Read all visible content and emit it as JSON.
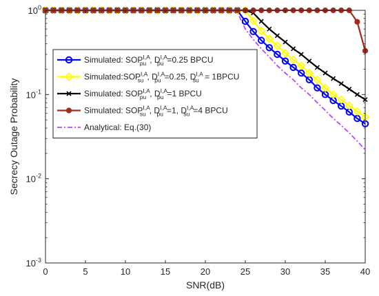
{
  "chart_data": {
    "type": "line",
    "xlabel": "SNR(dB)",
    "ylabel": "Secrecy Outage Probability",
    "xlim": [
      0,
      40
    ],
    "ylim": [
      0.001,
      1
    ],
    "yscale": "log",
    "grid": false,
    "legend_position": "center-left",
    "x_ticks": [
      0,
      5,
      10,
      15,
      20,
      25,
      30,
      35,
      40
    ],
    "x_tick_labels": [
      "0",
      "5",
      "10",
      "15",
      "20",
      "25",
      "30",
      "35",
      "40"
    ],
    "y_ticks": [
      0.001,
      0.01,
      0.1,
      1
    ],
    "y_tick_labels": [
      {
        "base": "10",
        "exp": "-3"
      },
      {
        "base": "10",
        "exp": "-2"
      },
      {
        "base": "10",
        "exp": "-1"
      },
      {
        "base": "10",
        "exp": "0"
      }
    ],
    "x": [
      0,
      1,
      2,
      3,
      4,
      5,
      6,
      7,
      8,
      9,
      10,
      11,
      12,
      13,
      14,
      15,
      16,
      17,
      18,
      19,
      20,
      21,
      22,
      23,
      24,
      25,
      26,
      27,
      28,
      29,
      30,
      31,
      32,
      33,
      34,
      35,
      36,
      37,
      38,
      39,
      40
    ],
    "series": [
      {
        "legend": {
          "pre": "Simulated: SOP",
          "sup1": "I,A",
          "sub1": "pu",
          "mid": ", D",
          "sup2": "I,A",
          "sub2": "pu",
          "post": "=0.25 BPCU"
        },
        "color": "#0000ff",
        "marker": "circle",
        "values": [
          1,
          1,
          1,
          1,
          1,
          1,
          1,
          1,
          1,
          1,
          1,
          1,
          1,
          1,
          1,
          1,
          1,
          1,
          1,
          1,
          1,
          1,
          1,
          1,
          1,
          0.74,
          0.56,
          0.44,
          0.36,
          0.3,
          0.25,
          0.21,
          0.18,
          0.15,
          0.12,
          0.1,
          0.085,
          0.073,
          0.062,
          0.052,
          0.045
        ]
      },
      {
        "legend": {
          "pre": "Simulated:SOP",
          "sup1": "I,A",
          "sub1": "su",
          "mid": ", D",
          "sup2": "I,A",
          "sub2": "pu",
          "post": "=0.25, D",
          "sup3": "I,A",
          "sub3": "su",
          "post2": " = 1BPCU"
        },
        "color": "#ffff00",
        "marker": "diamond",
        "values": [
          1,
          1,
          1,
          1,
          1,
          1,
          1,
          1,
          1,
          1,
          1,
          1,
          1,
          1,
          1,
          1,
          1,
          1,
          1,
          1,
          1,
          1,
          1,
          1,
          1,
          1,
          0.75,
          0.57,
          0.46,
          0.38,
          0.31,
          0.26,
          0.22,
          0.18,
          0.15,
          0.12,
          0.1,
          0.087,
          0.074,
          0.063,
          0.054
        ]
      },
      {
        "legend": {
          "pre": "Simulated: SOP",
          "sup1": "I,A",
          "sub1": "pu",
          "mid": ", D",
          "sup2": "I,A",
          "sub2": "pu",
          "post": "=1 BPCU"
        },
        "color": "#000000",
        "marker": "x",
        "values": [
          1,
          1,
          1,
          1,
          1,
          1,
          1,
          1,
          1,
          1,
          1,
          1,
          1,
          1,
          1,
          1,
          1,
          1,
          1,
          1,
          1,
          1,
          1,
          1,
          1,
          1,
          0.93,
          0.74,
          0.6,
          0.5,
          0.42,
          0.35,
          0.3,
          0.25,
          0.21,
          0.18,
          0.155,
          0.135,
          0.116,
          0.1,
          0.087
        ]
      },
      {
        "legend": {
          "pre": "Simulated: SOP",
          "sup1": "I,A",
          "sub1": "su",
          "mid": ", D",
          "sup2": "I,A",
          "sub2": "pu",
          "post": "=1, D",
          "sup3": "I,A",
          "sub3": "su",
          "post2": "=4 BPCU"
        },
        "color": "#a52a1e",
        "marker": "dot",
        "values": [
          1,
          1,
          1,
          1,
          1,
          1,
          1,
          1,
          1,
          1,
          1,
          1,
          1,
          1,
          1,
          1,
          1,
          1,
          1,
          1,
          1,
          1,
          1,
          1,
          1,
          1,
          1,
          1,
          1,
          1,
          1,
          1,
          1,
          1,
          1,
          1,
          1,
          1,
          1,
          0.73,
          0.33
        ]
      },
      {
        "legend": {
          "pre": "Analytical: Eq.(30)"
        },
        "color": "#c040ff",
        "marker": "none",
        "dashed": true,
        "curves": [
          [
            1,
            1,
            1,
            1,
            1,
            1,
            1,
            1,
            1,
            1,
            1,
            1,
            1,
            1,
            1,
            1,
            1,
            1,
            1,
            1,
            1,
            1,
            1,
            1,
            1,
            0.74,
            0.56,
            0.44,
            0.36,
            0.3,
            0.25,
            0.21,
            0.18,
            0.15,
            0.12,
            0.1,
            0.085,
            0.073,
            0.062,
            0.052,
            0.045
          ],
          [
            1,
            1,
            1,
            1,
            1,
            1,
            1,
            1,
            1,
            1,
            1,
            1,
            1,
            1,
            1,
            1,
            1,
            1,
            1,
            1,
            1,
            1,
            1,
            1,
            1,
            1,
            0.75,
            0.57,
            0.46,
            0.38,
            0.31,
            0.26,
            0.22,
            0.18,
            0.15,
            0.12,
            0.1,
            0.087,
            0.074,
            0.063,
            0.054
          ],
          [
            1,
            1,
            1,
            1,
            1,
            1,
            1,
            1,
            1,
            1,
            1,
            1,
            1,
            1,
            1,
            1,
            1,
            1,
            1,
            1,
            1,
            1,
            1,
            1,
            1,
            1,
            0.93,
            0.74,
            0.6,
            0.5,
            0.42,
            0.35,
            0.3,
            0.25,
            0.21,
            0.18,
            0.155,
            0.135,
            0.116,
            0.1,
            0.087
          ],
          [
            1,
            1,
            1,
            1,
            1,
            1,
            1,
            1,
            1,
            1,
            1,
            1,
            1,
            1,
            1,
            1,
            1,
            1,
            1,
            1,
            1,
            1,
            1,
            1,
            1,
            1,
            1,
            1,
            1,
            1,
            1,
            1,
            1,
            1,
            1,
            1,
            1,
            1,
            1,
            0.73,
            0.33
          ],
          [
            1,
            1,
            1,
            1,
            1,
            1,
            1,
            1,
            1,
            1,
            1,
            1,
            1,
            1,
            1,
            1,
            1,
            1,
            1,
            1,
            1,
            1,
            1,
            1,
            0.95,
            0.6,
            0.45,
            0.35,
            0.28,
            0.22,
            0.18,
            0.15,
            0.12,
            0.1,
            0.08,
            0.065,
            0.052,
            0.043,
            0.035,
            0.028,
            0.022
          ]
        ]
      }
    ]
  }
}
